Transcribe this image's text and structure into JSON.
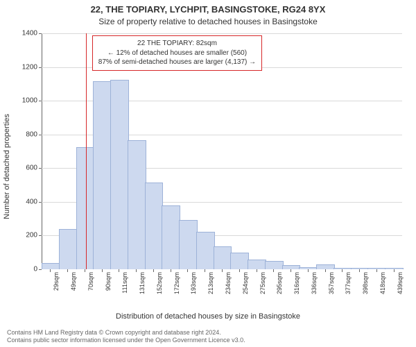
{
  "title": "22, THE TOPIARY, LYCHPIT, BASINGSTOKE, RG24 8YX",
  "subtitle": "Size of property relative to detached houses in Basingstoke",
  "ylabel": "Number of detached properties",
  "xlabel": "Distribution of detached houses by size in Basingstoke",
  "footer_line1": "Contains HM Land Registry data © Crown copyright and database right 2024.",
  "footer_line2": "Contains public sector information licensed under the Open Government Licence v3.0.",
  "annotation": {
    "line1": "22 THE TOPIARY: 82sqm",
    "line2": "← 12% of detached houses are smaller (560)",
    "line3": "87% of semi-detached houses are larger (4,137) →"
  },
  "chart": {
    "type": "histogram",
    "background_color": "#ffffff",
    "grid_color": "#d9d9d9",
    "axis_color": "#666666",
    "bar_fill": "#cdd9ef",
    "bar_border": "#9db2d8",
    "bar_width_ratio": 1.0,
    "marker_color": "#d62728",
    "marker_value": 82,
    "title_fontsize": 13,
    "subtitle_fontsize": 12,
    "label_fontsize": 11,
    "tick_fontsize": 10,
    "annotation_fontsize": 10,
    "ylim": [
      0,
      1400
    ],
    "ytick_step": 200,
    "xlim": [
      29,
      459
    ],
    "categories": [
      29,
      49,
      70,
      90,
      111,
      131,
      152,
      172,
      193,
      213,
      234,
      254,
      275,
      295,
      316,
      336,
      357,
      377,
      398,
      418,
      439
    ],
    "category_suffix": "sqm",
    "values": [
      35,
      235,
      720,
      1110,
      1120,
      760,
      510,
      375,
      290,
      220,
      130,
      95,
      55,
      45,
      20,
      10,
      25,
      5,
      5,
      5,
      5
    ],
    "annot_box_left_pct": 14,
    "annot_box_top_pct": 1
  }
}
